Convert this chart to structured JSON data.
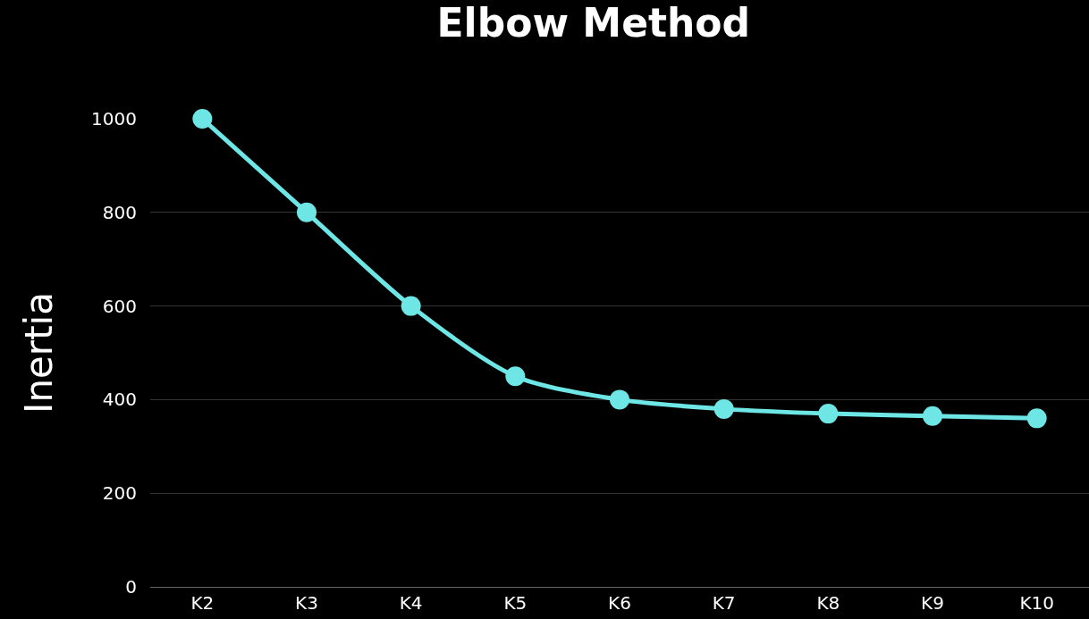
{
  "chart_data": {
    "type": "line",
    "title": "Elbow Method",
    "ylabel": "Inertia",
    "categories": [
      "K2",
      "K3",
      "K4",
      "K5",
      "K6",
      "K7",
      "K8",
      "K9",
      "K10"
    ],
    "series": [
      {
        "color": "#6ee6e6",
        "values": [
          1000,
          800,
          600,
          450,
          400,
          380,
          370,
          365,
          360
        ]
      }
    ],
    "ylim": [
      0,
      1000
    ],
    "yticks": [
      0,
      200,
      400,
      600,
      800,
      1000
    ],
    "grid": "y",
    "marker": "circle",
    "line_style": "solid"
  }
}
